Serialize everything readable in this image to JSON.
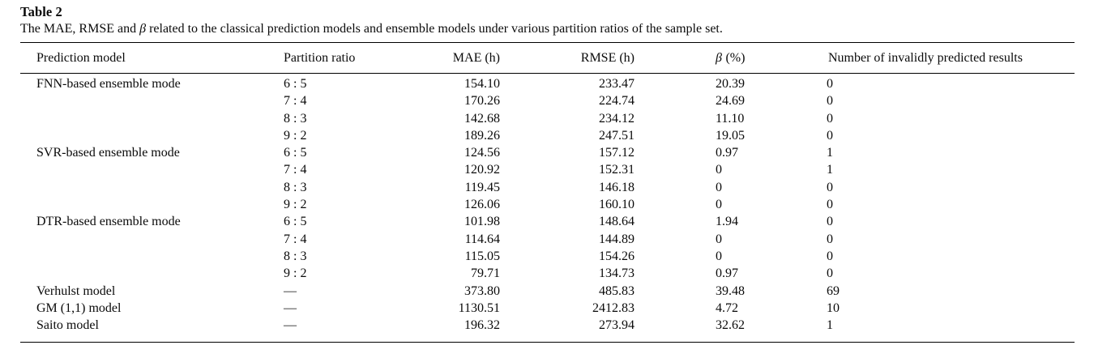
{
  "page": {
    "background": "#ffffff",
    "text_color": "#0a0a0a"
  },
  "table": {
    "title": "Table 2",
    "caption_pre": "The MAE, RMSE and ",
    "caption_beta": "β",
    "caption_post": " related to the classical prediction models and ensemble models under various partition ratios of the sample set.",
    "header": {
      "prediction_model": "Prediction model",
      "partition_ratio": "Partition ratio",
      "mae": "MAE (h)",
      "rmse": "RMSE (h)",
      "beta_symbol": "β",
      "beta_unit": "(%)",
      "invalid": "Number of invalidly predicted results"
    },
    "rows": [
      {
        "model": "FNN-based ensemble mode",
        "ratio": "6 : 5",
        "mae": "154.10",
        "rmse": "233.47",
        "beta": "20.39",
        "invalid": "0"
      },
      {
        "model": "",
        "ratio": "7 : 4",
        "mae": "170.26",
        "rmse": "224.74",
        "beta": "24.69",
        "invalid": "0"
      },
      {
        "model": "",
        "ratio": "8 : 3",
        "mae": "142.68",
        "rmse": "234.12",
        "beta": "11.10",
        "invalid": "0"
      },
      {
        "model": "",
        "ratio": "9 : 2",
        "mae": "189.26",
        "rmse": "247.51",
        "beta": "19.05",
        "invalid": "0"
      },
      {
        "model": "SVR-based ensemble mode",
        "ratio": "6 : 5",
        "mae": "124.56",
        "rmse": "157.12",
        "beta": "0.97",
        "invalid": "1"
      },
      {
        "model": "",
        "ratio": "7 : 4",
        "mae": "120.92",
        "rmse": "152.31",
        "beta": "0",
        "invalid": "1"
      },
      {
        "model": "",
        "ratio": "8 : 3",
        "mae": "119.45",
        "rmse": "146.18",
        "beta": "0",
        "invalid": "0"
      },
      {
        "model": "",
        "ratio": "9 : 2",
        "mae": "126.06",
        "rmse": "160.10",
        "beta": "0",
        "invalid": "0"
      },
      {
        "model": "DTR-based ensemble mode",
        "ratio": "6 : 5",
        "mae": "101.98",
        "rmse": "148.64",
        "beta": "1.94",
        "invalid": "0"
      },
      {
        "model": "",
        "ratio": "7 : 4",
        "mae": "114.64",
        "rmse": "144.89",
        "beta": "0",
        "invalid": "0"
      },
      {
        "model": "",
        "ratio": "8 : 3",
        "mae": "115.05",
        "rmse": "154.26",
        "beta": "0",
        "invalid": "0"
      },
      {
        "model": "",
        "ratio": "9 : 2",
        "mae": "79.71",
        "rmse": "134.73",
        "beta": "0.97",
        "invalid": "0"
      },
      {
        "model": "Verhulst model",
        "ratio": "—",
        "mae": "373.80",
        "rmse": "485.83",
        "beta": "39.48",
        "invalid": "69"
      },
      {
        "model": "GM (1,1) model",
        "ratio": "—",
        "mae": "1130.51",
        "rmse": "2412.83",
        "beta": "4.72",
        "invalid": "10"
      },
      {
        "model": "Saito model",
        "ratio": "—",
        "mae": "196.32",
        "rmse": "273.94",
        "beta": "32.62",
        "invalid": "1"
      }
    ]
  }
}
